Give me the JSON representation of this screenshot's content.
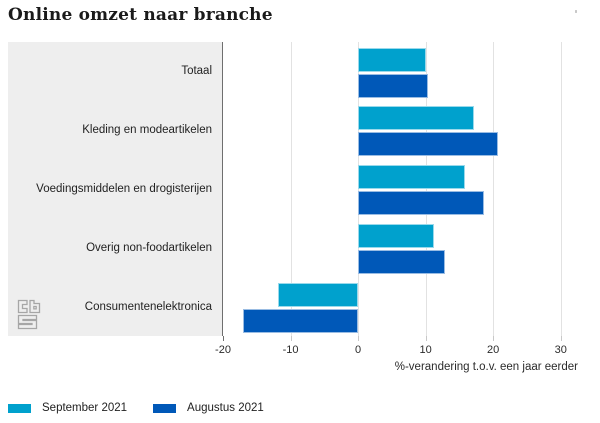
{
  "header": {
    "title": "Online omzet naar branche",
    "menu_icon": "hamburger-icon"
  },
  "chart_data": {
    "type": "bar",
    "orientation": "horizontal",
    "title": "Online omzet naar branche",
    "categories": [
      "Totaal",
      "Kleding en modeartikelen",
      "Voedingsmiddelen en drogisterijen",
      "Overig non-foodartikelen",
      "Consumentenelektronica"
    ],
    "series": [
      {
        "name": "September 2021",
        "color": "#00a1cd",
        "values": [
          10.0,
          17.1,
          15.8,
          11.2,
          -11.9
        ]
      },
      {
        "name": "Augustus 2021",
        "color": "#0058b8",
        "values": [
          10.4,
          20.7,
          18.6,
          12.9,
          -17.0
        ]
      }
    ],
    "xlabel": "%-verandering t.o.v. een jaar eerder",
    "x_ticks": [
      -20,
      -10,
      0,
      10,
      20,
      30
    ],
    "xlim": [
      -20,
      33.3
    ],
    "grid": true,
    "legend_position": "bottom-left"
  },
  "colors": {
    "label_panel_bg": "#eeeeee",
    "axis_line": "#6f6f6f",
    "gridline": "#e2e2e2",
    "text": "#222222"
  },
  "footer": {
    "logo": "cbs-logo"
  }
}
